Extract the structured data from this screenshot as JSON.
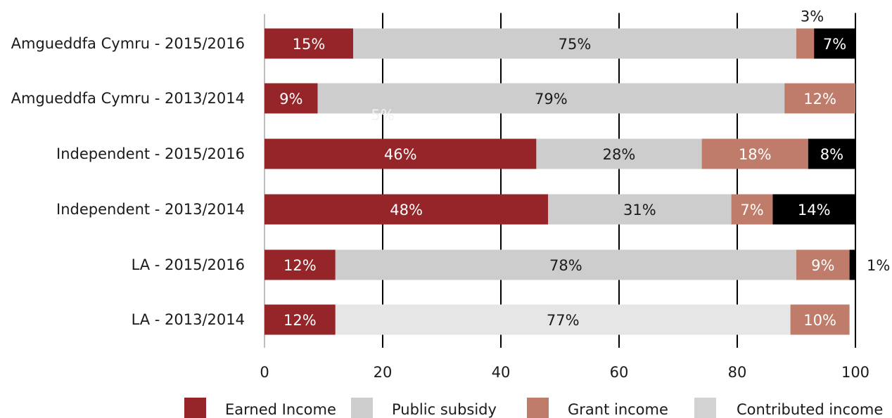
{
  "chart_data": {
    "type": "bar",
    "orientation": "horizontal",
    "stacked": true,
    "categories": [
      "Amgueddfa Cymru - 2015/2016",
      "Amgueddfa Cymru - 2013/2014",
      "Independent - 2015/2016",
      "Independent - 2013/2014",
      "LA - 2015/2016",
      "LA - 2013/2014"
    ],
    "series": [
      {
        "name": "Earned Income",
        "color": "#952528",
        "values": [
          15,
          9,
          46,
          48,
          12,
          12
        ],
        "labels": [
          "15%",
          "9%",
          "46%",
          "48%",
          "12%",
          "12%"
        ],
        "label_color": "#ffffff"
      },
      {
        "name": "Public subsidy",
        "color": "#cdcdcd",
        "values": [
          75,
          79,
          28,
          31,
          78,
          77
        ],
        "labels": [
          "75%",
          "79%",
          "28%",
          "31%",
          "78%",
          "77%"
        ],
        "label_color": "#1a1a1a"
      },
      {
        "name": "Grant income",
        "color": "#c07c6a",
        "values": [
          3,
          12,
          18,
          7,
          9,
          10
        ],
        "labels": [
          "3%",
          "12%",
          "18%",
          "7%",
          "9%",
          "10%"
        ],
        "label_color": "#ffffff"
      },
      {
        "name": "Contributed income",
        "color": "#000000",
        "values": [
          7,
          0,
          8,
          14,
          1,
          0
        ],
        "labels": [
          "7%",
          "",
          "8%",
          "14%",
          "1%",
          ""
        ],
        "label_color": "#ffffff"
      }
    ],
    "last_row_public_color": "#e6e6e6",
    "stray_label": "5%",
    "xlim": [
      0,
      100
    ],
    "xticks": [
      "0",
      "20",
      "40",
      "60",
      "80",
      "100"
    ],
    "grid": true,
    "legend_position": "bottom",
    "legend_swatch_colors": [
      "#952528",
      "#cdcdcd",
      "#c07c6a",
      "#d2d2d2"
    ]
  }
}
